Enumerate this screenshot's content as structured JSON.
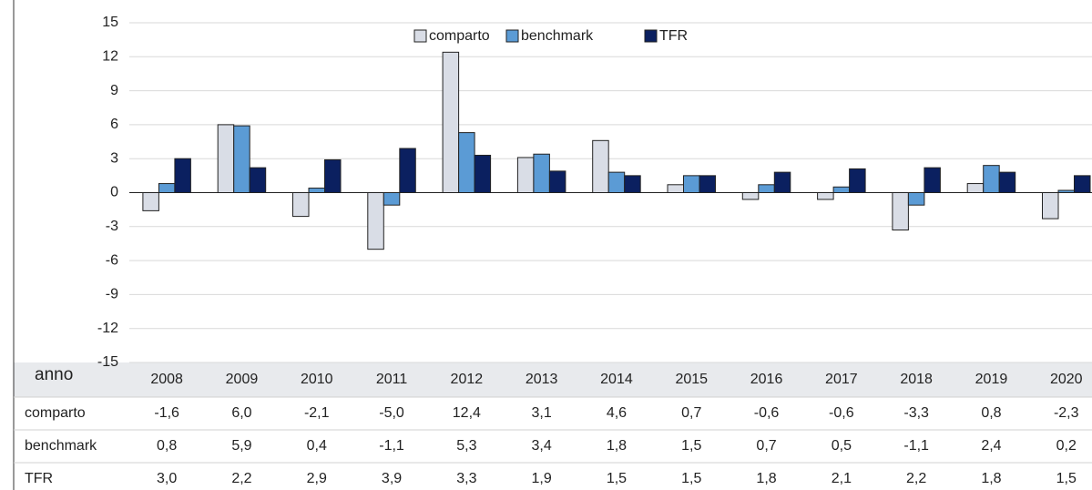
{
  "chart_data": {
    "type": "bar",
    "table_header": "anno",
    "categories": [
      "2008",
      "2009",
      "2010",
      "2011",
      "2012",
      "2013",
      "2014",
      "2015",
      "2016",
      "2017",
      "2018",
      "2019",
      "2020"
    ],
    "series": [
      {
        "name": "comparto",
        "color": "#d9dde6",
        "values": [
          -1.6,
          6.0,
          -2.1,
          -5.0,
          12.4,
          3.1,
          4.6,
          0.7,
          -0.6,
          -0.6,
          -3.3,
          0.8,
          -2.3
        ],
        "value_labels": [
          "-1,6",
          "6,0",
          "-2,1",
          "-5,0",
          "12,4",
          "3,1",
          "4,6",
          "0,7",
          "-0,6",
          "-0,6",
          "-3,3",
          "0,8",
          "-2,3"
        ]
      },
      {
        "name": "benchmark",
        "color": "#5b9bd5",
        "values": [
          0.8,
          5.9,
          0.4,
          -1.1,
          5.3,
          3.4,
          1.8,
          1.5,
          0.7,
          0.5,
          -1.1,
          2.4,
          0.2
        ],
        "value_labels": [
          "0,8",
          "5,9",
          "0,4",
          "-1,1",
          "5,3",
          "3,4",
          "1,8",
          "1,5",
          "0,7",
          "0,5",
          "-1,1",
          "2,4",
          "0,2"
        ]
      },
      {
        "name": "TFR",
        "color": "#0b2060",
        "values": [
          3.0,
          2.2,
          2.9,
          3.9,
          3.3,
          1.9,
          1.5,
          1.5,
          1.8,
          2.1,
          2.2,
          1.8,
          1.5
        ],
        "value_labels": [
          "3,0",
          "2,2",
          "2,9",
          "3,9",
          "3,3",
          "1,9",
          "1,5",
          "1,5",
          "1,8",
          "2,1",
          "2,2",
          "1,8",
          "1,5"
        ]
      }
    ],
    "ylim": [
      -15,
      15
    ],
    "yticks": [
      -15,
      -12,
      -9,
      -6,
      -3,
      0,
      3,
      6,
      9,
      12,
      15
    ],
    "grid": true
  }
}
